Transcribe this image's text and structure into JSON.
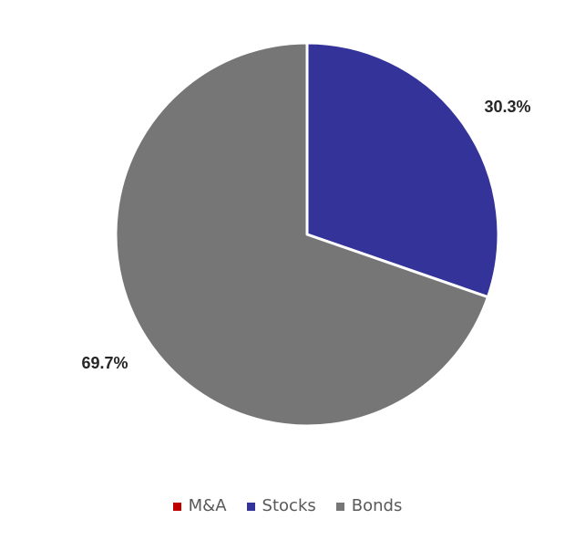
{
  "chart_data": {
    "type": "pie",
    "categories": [
      "M&A",
      "Stocks",
      "Bonds"
    ],
    "values": [
      0,
      30.3,
      69.7
    ],
    "data_labels": [
      "",
      "30.3%",
      "69.7%"
    ],
    "colors": [
      "#C00000",
      "#333399",
      "#767676"
    ],
    "legend_position": "bottom",
    "start_angle_deg": 0,
    "direction": "clockwise"
  }
}
